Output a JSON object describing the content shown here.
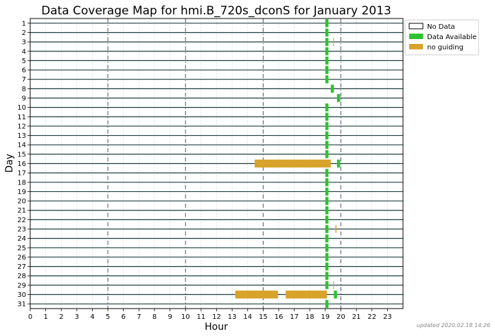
{
  "chart_data": {
    "type": "heatmap",
    "title": "Data Coverage Map for hmi.B_720s_dconS for January 2013",
    "xlabel": "Hour",
    "ylabel": "Day",
    "xlim": [
      0,
      24
    ],
    "ylim": [
      1,
      31
    ],
    "x_ticks": [
      "0",
      "1",
      "2",
      "3",
      "4",
      "5",
      "6",
      "7",
      "8",
      "9",
      "10",
      "11",
      "12",
      "13",
      "14",
      "15",
      "16",
      "17",
      "18",
      "19",
      "20",
      "21",
      "22",
      "23"
    ],
    "y_ticks": [
      "1",
      "2",
      "3",
      "4",
      "5",
      "6",
      "7",
      "8",
      "9",
      "10",
      "11",
      "12",
      "13",
      "14",
      "15",
      "16",
      "17",
      "18",
      "19",
      "20",
      "21",
      "22",
      "23",
      "24",
      "25",
      "26",
      "27",
      "28",
      "29",
      "30",
      "31"
    ],
    "major_hour_lines": [
      5,
      10,
      15,
      20
    ],
    "grid": true,
    "legend_position": "top-right",
    "legend": [
      {
        "label": "No Data",
        "color": "#ffffff"
      },
      {
        "label": "Data Available",
        "color": "#2ec231"
      },
      {
        "label": "no guiding",
        "color": "#d8a32a"
      }
    ],
    "colors": {
      "no_data_line": "#1b3a3a",
      "available": "#2ec231",
      "no_guiding": "#d8a32a",
      "major_line": "#5f6f80"
    },
    "segments": [
      {
        "day": 1,
        "start": 19.0,
        "end": 19.2,
        "status": "available"
      },
      {
        "day": 2,
        "start": 19.0,
        "end": 19.2,
        "status": "available"
      },
      {
        "day": 3,
        "start": 19.0,
        "end": 19.2,
        "status": "available"
      },
      {
        "day": 3,
        "start": 19.5,
        "end": 19.55,
        "status": "no_guiding"
      },
      {
        "day": 4,
        "start": 19.0,
        "end": 19.2,
        "status": "available"
      },
      {
        "day": 5,
        "start": 19.0,
        "end": 19.2,
        "status": "available"
      },
      {
        "day": 6,
        "start": 19.0,
        "end": 19.2,
        "status": "available"
      },
      {
        "day": 7,
        "start": 19.0,
        "end": 19.2,
        "status": "available"
      },
      {
        "day": 8,
        "start": 19.35,
        "end": 19.55,
        "status": "available"
      },
      {
        "day": 9,
        "start": 19.75,
        "end": 19.95,
        "status": "available"
      },
      {
        "day": 10,
        "start": 19.0,
        "end": 19.2,
        "status": "available"
      },
      {
        "day": 11,
        "start": 19.0,
        "end": 19.2,
        "status": "available"
      },
      {
        "day": 12,
        "start": 19.0,
        "end": 19.2,
        "status": "available"
      },
      {
        "day": 13,
        "start": 19.0,
        "end": 19.2,
        "status": "available"
      },
      {
        "day": 14,
        "start": 19.0,
        "end": 19.2,
        "status": "available"
      },
      {
        "day": 15,
        "start": 19.0,
        "end": 19.2,
        "status": "available"
      },
      {
        "day": 16,
        "start": 14.45,
        "end": 19.35,
        "status": "no_guiding"
      },
      {
        "day": 16,
        "start": 19.75,
        "end": 19.95,
        "status": "available"
      },
      {
        "day": 17,
        "start": 19.0,
        "end": 19.2,
        "status": "available"
      },
      {
        "day": 18,
        "start": 19.0,
        "end": 19.2,
        "status": "available"
      },
      {
        "day": 19,
        "start": 19.0,
        "end": 19.2,
        "status": "available"
      },
      {
        "day": 20,
        "start": 19.0,
        "end": 19.2,
        "status": "available"
      },
      {
        "day": 21,
        "start": 19.0,
        "end": 19.2,
        "status": "available"
      },
      {
        "day": 22,
        "start": 19.0,
        "end": 19.2,
        "status": "available"
      },
      {
        "day": 23,
        "start": 19.0,
        "end": 19.2,
        "status": "available"
      },
      {
        "day": 23,
        "start": 19.65,
        "end": 19.72,
        "status": "no_guiding"
      },
      {
        "day": 24,
        "start": 19.0,
        "end": 19.2,
        "status": "available"
      },
      {
        "day": 25,
        "start": 19.0,
        "end": 19.2,
        "status": "available"
      },
      {
        "day": 26,
        "start": 19.0,
        "end": 19.2,
        "status": "available"
      },
      {
        "day": 27,
        "start": 19.0,
        "end": 19.2,
        "status": "available"
      },
      {
        "day": 28,
        "start": 19.0,
        "end": 19.2,
        "status": "available"
      },
      {
        "day": 29,
        "start": 19.0,
        "end": 19.2,
        "status": "available"
      },
      {
        "day": 29,
        "start": 19.5,
        "end": 19.55,
        "status": "no_guiding"
      },
      {
        "day": 30,
        "start": 13.2,
        "end": 15.95,
        "status": "no_guiding"
      },
      {
        "day": 30,
        "start": 16.45,
        "end": 19.1,
        "status": "no_guiding"
      },
      {
        "day": 30,
        "start": 19.55,
        "end": 19.75,
        "status": "available"
      },
      {
        "day": 31,
        "start": 19.0,
        "end": 19.2,
        "status": "available"
      }
    ]
  },
  "footer": {
    "updated": "updated 2020.02.18 14:26"
  }
}
